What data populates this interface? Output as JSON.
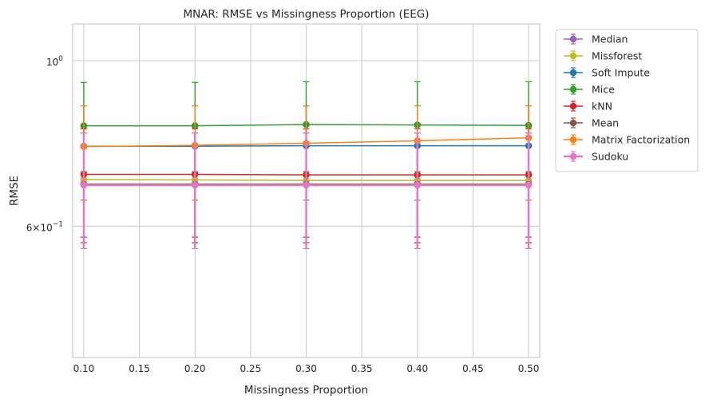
{
  "chart_data": {
    "type": "line",
    "title": "MNAR: RMSE vs Missingness Proportion (EEG)",
    "xlabel": "Missingness Proportion",
    "ylabel": "RMSE",
    "y_scale": "log",
    "xlim": [
      0.09,
      0.51
    ],
    "ylim": [
      0.4,
      1.12
    ],
    "x_ticks": [
      {
        "value": 0.1,
        "label": "0.10"
      },
      {
        "value": 0.15,
        "label": "0.15"
      },
      {
        "value": 0.2,
        "label": "0.20"
      },
      {
        "value": 0.25,
        "label": "0.25"
      },
      {
        "value": 0.3,
        "label": "0.30"
      },
      {
        "value": 0.35,
        "label": "0.35"
      },
      {
        "value": 0.4,
        "label": "0.40"
      },
      {
        "value": 0.45,
        "label": "0.45"
      },
      {
        "value": 0.5,
        "label": "0.50"
      }
    ],
    "y_ticks": [
      {
        "value": 1.0,
        "base": "10",
        "exp": "0",
        "coef": ""
      },
      {
        "value": 0.6,
        "base": "10",
        "exp": "−1",
        "coef": "6×"
      }
    ],
    "grid": true,
    "legend_position": "outside-right",
    "x": [
      0.1,
      0.2,
      0.3,
      0.4,
      0.5
    ],
    "series": [
      {
        "name": "Median",
        "color": "#9467bd",
        "values": [
          0.683,
          0.683,
          0.683,
          0.683,
          0.683
        ],
        "err_low": [
          0.57,
          0.57,
          0.57,
          0.57,
          0.57
        ],
        "err_high": [
          0.8,
          0.8,
          0.8,
          0.8,
          0.8
        ]
      },
      {
        "name": "Missforest",
        "color": "#bcbd22",
        "values": [
          0.693,
          0.692,
          0.691,
          0.691,
          0.691
        ],
        "err_low": [
          0.57,
          0.57,
          0.57,
          0.57,
          0.57
        ],
        "err_high": [
          0.8,
          0.8,
          0.8,
          0.8,
          0.8
        ]
      },
      {
        "name": "Soft Impute",
        "color": "#1f77b4",
        "values": [
          0.768,
          0.768,
          0.769,
          0.769,
          0.769
        ],
        "err_low": [
          0.65,
          0.65,
          0.65,
          0.65,
          0.65
        ],
        "err_high": [
          0.87,
          0.87,
          0.87,
          0.87,
          0.87
        ]
      },
      {
        "name": "Mice",
        "color": "#2ca02c",
        "values": [
          0.818,
          0.818,
          0.821,
          0.82,
          0.819
        ],
        "err_low": [
          0.71,
          0.71,
          0.71,
          0.71,
          0.71
        ],
        "err_high": [
          0.935,
          0.935,
          0.937,
          0.937,
          0.937
        ]
      },
      {
        "name": "kNN",
        "color": "#d62728",
        "values": [
          0.704,
          0.704,
          0.703,
          0.703,
          0.703
        ],
        "err_low": [
          0.58,
          0.58,
          0.58,
          0.58,
          0.58
        ],
        "err_high": [
          0.81,
          0.81,
          0.81,
          0.81,
          0.81
        ]
      },
      {
        "name": "Mean",
        "color": "#8c564b",
        "values": [
          0.683,
          0.683,
          0.683,
          0.683,
          0.683
        ],
        "err_low": [
          0.57,
          0.57,
          0.57,
          0.57,
          0.57
        ],
        "err_high": [
          0.8,
          0.8,
          0.8,
          0.8,
          0.8
        ]
      },
      {
        "name": "Matrix Factorization",
        "color": "#ff7f0e",
        "values": [
          0.767,
          0.77,
          0.775,
          0.781,
          0.788
        ],
        "err_low": [
          0.65,
          0.65,
          0.65,
          0.65,
          0.65
        ],
        "err_high": [
          0.87,
          0.87,
          0.87,
          0.87,
          0.87
        ]
      },
      {
        "name": "Sudoku",
        "color": "#e377c2",
        "values": [
          0.681,
          0.681,
          0.681,
          0.681,
          0.681
        ],
        "err_low": [
          0.56,
          0.56,
          0.56,
          0.56,
          0.56
        ],
        "err_high": [
          0.8,
          0.8,
          0.8,
          0.8,
          0.8
        ]
      }
    ]
  }
}
